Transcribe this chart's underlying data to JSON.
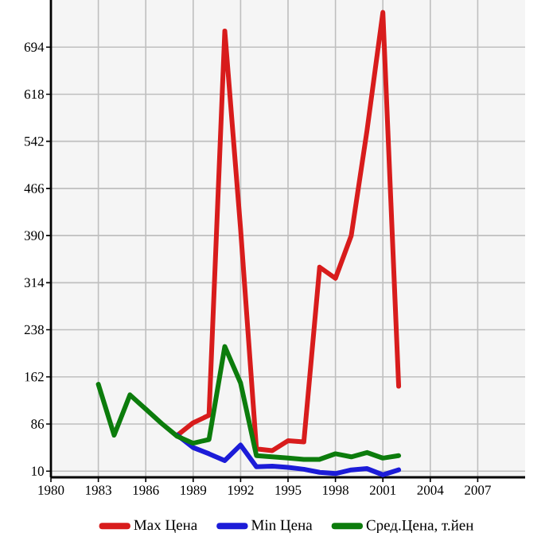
{
  "chart_data": {
    "type": "line",
    "x": [
      1983,
      1984,
      1985,
      1986,
      1987,
      1988,
      1989,
      1990,
      1991,
      1992,
      1993,
      1994,
      1995,
      1996,
      1997,
      1998,
      1999,
      2000,
      2001,
      2002
    ],
    "series": [
      {
        "name": "Max Цена",
        "color": "#d81c1c",
        "values": [
          null,
          null,
          null,
          null,
          null,
          68,
          88,
          100,
          720,
          400,
          46,
          43,
          59,
          57,
          339,
          321,
          390,
          560,
          750,
          147
        ]
      },
      {
        "name": "Min Цена",
        "color": "#1c1cd8",
        "values": [
          null,
          null,
          null,
          null,
          null,
          68,
          48,
          38,
          27,
          52,
          17,
          18,
          16,
          13,
          8,
          6,
          12,
          14,
          4,
          12
        ]
      },
      {
        "name": "Сред.Цена, т.йен",
        "color": "#0c7c0c",
        "values": [
          150,
          68,
          133,
          110,
          87,
          66,
          55,
          61,
          211,
          152,
          35,
          33,
          31,
          29,
          29,
          38,
          33,
          40,
          31,
          35
        ]
      }
    ],
    "xlim": [
      1980,
      2010
    ],
    "xticks": [
      1980,
      1983,
      1986,
      1989,
      1992,
      1995,
      1998,
      2001,
      2004,
      2007
    ],
    "ylim": [
      0,
      770
    ],
    "yticks": [
      10,
      86,
      162,
      238,
      314,
      390,
      466,
      542,
      618,
      694
    ],
    "grid": true,
    "legend": "bottom",
    "marker": "none",
    "line_style": "solid"
  }
}
